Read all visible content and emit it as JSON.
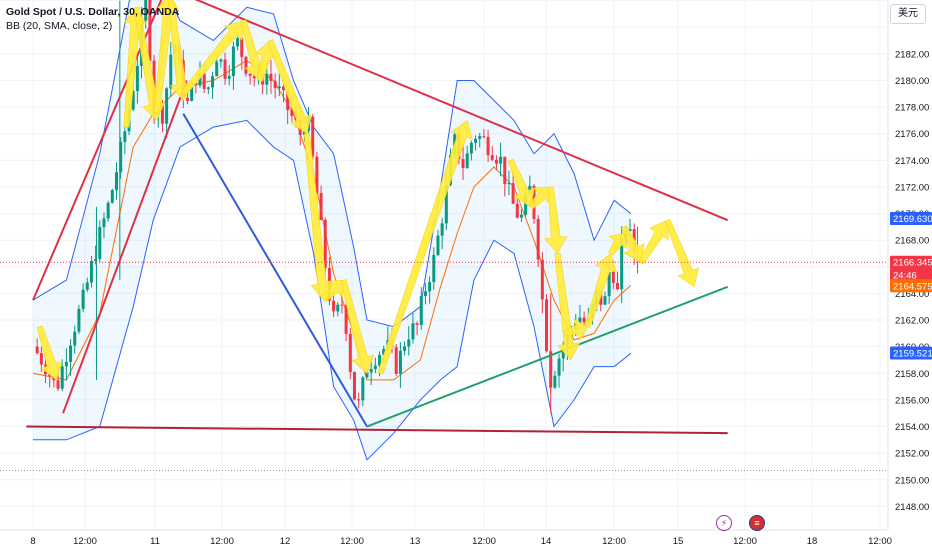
{
  "legend": {
    "symbol": "Gold Spot / U.S. Dollar, 30, OANDA",
    "indicator": "BB (20, SMA, close, 2)"
  },
  "currency_button": "美元",
  "colors": {
    "up": "#089981",
    "down": "#f23645",
    "bb_band": "#2962ff",
    "bb_basis": "#ff6d00",
    "arrow": "#ffeb3b",
    "trend_red": "#e03046",
    "trend_green": "#22a06b",
    "trend_blue": "#2f5bd8",
    "support_dark": "#b22234"
  },
  "chart_data": {
    "type": "candlestick",
    "symbol": "XAUUSD",
    "timeframe": "30",
    "ylim": [
      2146,
      2188
    ],
    "y_ticks": [
      2146,
      2148,
      2150,
      2152,
      2154,
      2156,
      2158,
      2160,
      2162,
      2164,
      2166,
      2168,
      2170,
      2172,
      2174,
      2176,
      2178,
      2180,
      2182,
      2184,
      2186
    ],
    "x_tick_labels": [
      "8",
      "12:00",
      "11",
      "12:00",
      "12",
      "12:00",
      "13",
      "12:00",
      "14",
      "12:00",
      "15",
      "12:00",
      "18",
      "12:00"
    ],
    "price_labels": [
      {
        "label": "2169.630",
        "value": 2169.63,
        "color": "#2962ff"
      },
      {
        "label": "2166.345",
        "value": 2166.345,
        "color": "#f23645"
      },
      {
        "label": "24:46",
        "value": 2165.4,
        "color": "#f23645"
      },
      {
        "label": "2164.575",
        "value": 2164.575,
        "color": "#ff6d00"
      },
      {
        "label": "2159.521",
        "value": 2159.521,
        "color": "#2962ff"
      }
    ],
    "close_path": [
      [
        0,
        2160.0
      ],
      [
        0.2,
        2158.5
      ],
      [
        0.35,
        2156.8
      ],
      [
        0.55,
        2160.5
      ],
      [
        0.75,
        2163.5
      ],
      [
        0.95,
        2167.5
      ],
      [
        1.15,
        2171.0
      ],
      [
        1.35,
        2175.5
      ],
      [
        1.55,
        2181.0
      ],
      [
        1.7,
        2186.5
      ],
      [
        1.8,
        2178.0
      ],
      [
        1.95,
        2177.5
      ],
      [
        2.1,
        2183.5
      ],
      [
        2.2,
        2180.5
      ],
      [
        2.3,
        2178.0
      ],
      [
        2.45,
        2180.5
      ],
      [
        2.6,
        2179.0
      ],
      [
        2.75,
        2182.0
      ],
      [
        2.9,
        2180.5
      ],
      [
        3.05,
        2183.0
      ],
      [
        3.2,
        2181.0
      ],
      [
        3.35,
        2180.0
      ],
      [
        3.5,
        2180.5
      ],
      [
        3.7,
        2179.0
      ],
      [
        3.85,
        2177.5
      ],
      [
        4.0,
        2176.0
      ],
      [
        4.1,
        2177.5
      ],
      [
        4.25,
        2171.5
      ],
      [
        4.4,
        2165.0
      ],
      [
        4.5,
        2162.0
      ],
      [
        4.65,
        2163.5
      ],
      [
        4.75,
        2158.5
      ],
      [
        4.85,
        2155.0
      ],
      [
        5.0,
        2158.5
      ],
      [
        5.15,
        2159.5
      ],
      [
        5.3,
        2160.0
      ],
      [
        5.45,
        2158.5
      ],
      [
        5.6,
        2161.0
      ],
      [
        5.75,
        2161.5
      ],
      [
        5.85,
        2164.0
      ],
      [
        6.0,
        2166.5
      ],
      [
        6.15,
        2170.5
      ],
      [
        6.3,
        2175.5
      ],
      [
        6.45,
        2173.5
      ],
      [
        6.6,
        2176.0
      ],
      [
        6.75,
        2175.5
      ],
      [
        6.85,
        2175.0
      ],
      [
        7.0,
        2174.0
      ],
      [
        7.15,
        2171.0
      ],
      [
        7.3,
        2169.5
      ],
      [
        7.45,
        2172.0
      ],
      [
        7.55,
        2168.0
      ],
      [
        7.65,
        2162.0
      ],
      [
        7.75,
        2157.5
      ],
      [
        7.85,
        2159.0
      ],
      [
        8.0,
        2160.5
      ],
      [
        8.15,
        2162.5
      ],
      [
        8.3,
        2161.5
      ],
      [
        8.45,
        2164.0
      ],
      [
        8.55,
        2163.0
      ],
      [
        8.65,
        2166.5
      ],
      [
        8.75,
        2164.0
      ],
      [
        8.85,
        2169.5
      ],
      [
        8.95,
        2168.0
      ],
      [
        9.05,
        2166.3
      ]
    ],
    "bollinger": {
      "upper": [
        [
          0,
          2163.5
        ],
        [
          0.5,
          2165.0
        ],
        [
          1.0,
          2174.5
        ],
        [
          1.5,
          2187.5
        ],
        [
          1.8,
          2188.5
        ],
        [
          2.2,
          2184.5
        ],
        [
          2.7,
          2183.0
        ],
        [
          3.2,
          2185.5
        ],
        [
          3.6,
          2185.0
        ],
        [
          3.9,
          2180.0
        ],
        [
          4.2,
          2176.5
        ],
        [
          4.5,
          2174.5
        ],
        [
          4.8,
          2167.5
        ],
        [
          5.0,
          2162.0
        ],
        [
          5.4,
          2161.5
        ],
        [
          5.8,
          2163.0
        ],
        [
          6.1,
          2172.0
        ],
        [
          6.35,
          2180.0
        ],
        [
          6.6,
          2180.0
        ],
        [
          6.9,
          2178.5
        ],
        [
          7.2,
          2177.0
        ],
        [
          7.5,
          2174.5
        ],
        [
          7.8,
          2176.0
        ],
        [
          8.1,
          2173.0
        ],
        [
          8.4,
          2168.0
        ],
        [
          8.7,
          2171.0
        ],
        [
          8.95,
          2170.0
        ]
      ],
      "basis": [
        [
          0,
          2158.0
        ],
        [
          0.5,
          2157.5
        ],
        [
          1.0,
          2162.5
        ],
        [
          1.5,
          2175.0
        ],
        [
          1.8,
          2177.5
        ],
        [
          2.2,
          2179.5
        ],
        [
          2.7,
          2180.0
        ],
        [
          3.2,
          2181.5
        ],
        [
          3.6,
          2180.0
        ],
        [
          3.9,
          2177.5
        ],
        [
          4.2,
          2173.0
        ],
        [
          4.5,
          2165.5
        ],
        [
          4.8,
          2161.0
        ],
        [
          5.0,
          2157.5
        ],
        [
          5.4,
          2157.5
        ],
        [
          5.8,
          2159.0
        ],
        [
          6.1,
          2164.5
        ],
        [
          6.35,
          2168.5
        ],
        [
          6.6,
          2172.0
        ],
        [
          6.9,
          2173.5
        ],
        [
          7.2,
          2172.0
        ],
        [
          7.5,
          2168.0
        ],
        [
          7.8,
          2163.5
        ],
        [
          8.1,
          2160.5
        ],
        [
          8.4,
          2161.0
        ],
        [
          8.7,
          2163.5
        ],
        [
          8.95,
          2164.6
        ]
      ],
      "lower": [
        [
          0,
          2153.0
        ],
        [
          0.5,
          2153.0
        ],
        [
          1.0,
          2154.0
        ],
        [
          1.5,
          2163.0
        ],
        [
          1.8,
          2169.5
        ],
        [
          2.2,
          2175.0
        ],
        [
          2.7,
          2176.5
        ],
        [
          3.2,
          2177.0
        ],
        [
          3.6,
          2175.0
        ],
        [
          3.9,
          2174.0
        ],
        [
          4.2,
          2167.0
        ],
        [
          4.5,
          2157.0
        ],
        [
          4.8,
          2154.5
        ],
        [
          5.0,
          2151.5
        ],
        [
          5.4,
          2153.5
        ],
        [
          5.8,
          2156.0
        ],
        [
          6.1,
          2157.5
        ],
        [
          6.35,
          2158.5
        ],
        [
          6.6,
          2165.0
        ],
        [
          6.9,
          2168.0
        ],
        [
          7.2,
          2167.0
        ],
        [
          7.5,
          2161.5
        ],
        [
          7.8,
          2154.0
        ],
        [
          8.1,
          2156.0
        ],
        [
          8.4,
          2158.5
        ],
        [
          8.7,
          2158.5
        ],
        [
          8.95,
          2159.5
        ]
      ]
    },
    "trendlines": [
      {
        "color": "trend_red",
        "from": [
          0.0,
          2163.5
        ],
        "to": [
          2.0,
          2187.0
        ]
      },
      {
        "color": "trend_red",
        "from": [
          0.45,
          2155.0
        ],
        "to": [
          2.3,
          2180.0
        ]
      },
      {
        "color": "trend_red",
        "from": [
          2.0,
          2187.0
        ],
        "to": [
          10.4,
          2169.5
        ]
      },
      {
        "color": "trend_blue",
        "from": [
          2.25,
          2177.5
        ],
        "to": [
          5.0,
          2154.0
        ]
      },
      {
        "color": "trend_green",
        "from": [
          5.0,
          2154.0
        ],
        "to": [
          10.4,
          2164.5
        ]
      },
      {
        "color": "support_dark",
        "from": [
          -0.1,
          2154.0
        ],
        "to": [
          10.4,
          2153.5
        ]
      }
    ],
    "forecast_arrows": [
      {
        "from": [
          0.1,
          2161.5
        ],
        "to": [
          0.35,
          2157.5
        ]
      },
      {
        "from": [
          1.4,
          2176.5
        ],
        "to": [
          1.55,
          2185.5
        ]
      },
      {
        "from": [
          1.55,
          2185.5
        ],
        "to": [
          1.85,
          2177.0
        ]
      },
      {
        "from": [
          1.85,
          2177.5
        ],
        "to": [
          2.05,
          2186.5
        ]
      },
      {
        "from": [
          2.05,
          2186.5
        ],
        "to": [
          2.25,
          2178.5
        ]
      },
      {
        "from": [
          2.25,
          2179.0
        ],
        "to": [
          3.15,
          2184.5
        ]
      },
      {
        "from": [
          3.15,
          2184.5
        ],
        "to": [
          3.4,
          2180.0
        ]
      },
      {
        "from": [
          3.4,
          2180.0
        ],
        "to": [
          3.55,
          2183.0
        ]
      },
      {
        "from": [
          3.55,
          2183.0
        ],
        "to": [
          4.1,
          2176.0
        ]
      },
      {
        "from": [
          4.1,
          2176.0
        ],
        "to": [
          4.35,
          2163.5
        ]
      },
      {
        "from": [
          4.35,
          2163.5
        ],
        "to": [
          4.65,
          2165.0
        ]
      },
      {
        "from": [
          4.65,
          2165.0
        ],
        "to": [
          5.0,
          2158.0
        ]
      },
      {
        "from": [
          5.2,
          2158.0
        ],
        "to": [
          6.5,
          2177.0
        ]
      },
      {
        "from": [
          7.15,
          2174.0
        ],
        "to": [
          7.45,
          2170.5
        ]
      },
      {
        "from": [
          7.45,
          2170.5
        ],
        "to": [
          7.75,
          2172.0
        ]
      },
      {
        "from": [
          7.75,
          2172.0
        ],
        "to": [
          7.85,
          2167.0
        ]
      },
      {
        "from": [
          7.85,
          2167.0
        ],
        "to": [
          8.05,
          2159.0
        ]
      },
      {
        "from": [
          7.95,
          2161.0
        ],
        "to": [
          8.3,
          2161.5
        ]
      },
      {
        "from": [
          8.3,
          2161.5
        ],
        "to": [
          8.65,
          2167.0
        ]
      },
      {
        "from": [
          8.65,
          2167.0
        ],
        "to": [
          8.85,
          2168.5
        ]
      },
      {
        "from": [
          8.85,
          2169.0
        ],
        "to": [
          9.1,
          2166.3
        ]
      },
      {
        "from": [
          9.1,
          2166.3
        ],
        "to": [
          9.5,
          2169.5
        ]
      },
      {
        "from": [
          9.5,
          2169.5
        ],
        "to": [
          9.9,
          2164.5
        ]
      }
    ]
  }
}
